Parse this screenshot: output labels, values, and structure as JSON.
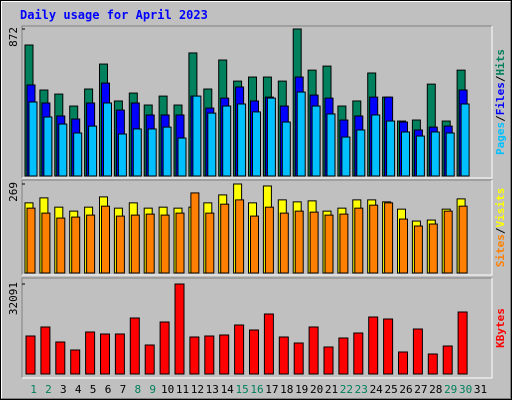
{
  "chart_data": [
    {
      "type": "bar",
      "title": "Daily usage for April 2023",
      "ylim": [
        0,
        872
      ],
      "yticks": [
        872
      ],
      "legend_separator": "/",
      "series": [
        {
          "name": "Hits",
          "color": "#00805c",
          "values": [
            777,
            510,
            486,
            415,
            516,
            664,
            445,
            492,
            421,
            474,
            421,
            730,
            516,
            688,
            563,
            587,
            587,
            563,
            872,
            628,
            652,
            415,
            445,
            611,
            468,
            326,
            332,
            545,
            326,
            628,
            null
          ]
        },
        {
          "name": "Files",
          "color": "#0000ff",
          "values": [
            540,
            433,
            356,
            338,
            433,
            551,
            391,
            433,
            362,
            362,
            362,
            474,
            403,
            462,
            528,
            445,
            468,
            415,
            587,
            480,
            462,
            332,
            356,
            468,
            468,
            320,
            273,
            290,
            296,
            510,
            null
          ]
        },
        {
          "name": "Pages",
          "color": "#00c0ff",
          "values": [
            439,
            350,
            308,
            255,
            296,
            433,
            249,
            279,
            279,
            290,
            225,
            474,
            373,
            415,
            427,
            380,
            462,
            320,
            498,
            415,
            368,
            231,
            273,
            362,
            326,
            261,
            237,
            261,
            255,
            427,
            null
          ]
        }
      ]
    },
    {
      "type": "bar",
      "ylim": [
        0,
        269
      ],
      "yticks": [
        269
      ],
      "legend_separator": "/",
      "series": [
        {
          "name": "Visits",
          "color": "#ffff00",
          "values": [
            212,
            227,
            199,
            187,
            199,
            230,
            196,
            212,
            196,
            199,
            196,
            199,
            212,
            236,
            269,
            212,
            263,
            221,
            215,
            218,
            187,
            196,
            221,
            221,
            215,
            193,
            157,
            160,
            193,
            224,
            null
          ]
        },
        {
          "name": "Sites",
          "color": "#ff8000",
          "values": [
            196,
            181,
            166,
            169,
            175,
            202,
            172,
            175,
            178,
            175,
            181,
            242,
            181,
            208,
            221,
            172,
            199,
            181,
            187,
            184,
            175,
            178,
            196,
            205,
            212,
            163,
            142,
            148,
            187,
            202,
            null
          ]
        }
      ]
    },
    {
      "type": "bar",
      "ylim": [
        0,
        32091
      ],
      "yticks": [
        32091
      ],
      "categories": [
        "1",
        "2",
        "3",
        "4",
        "5",
        "6",
        "7",
        "8",
        "9",
        "10",
        "11",
        "12",
        "13",
        "14",
        "15",
        "16",
        "17",
        "18",
        "19",
        "20",
        "21",
        "22",
        "23",
        "24",
        "25",
        "26",
        "27",
        "28",
        "29",
        "30",
        "31"
      ],
      "label_colors": [
        "#00805c",
        "#00805c",
        "#000000",
        "#000000",
        "#000000",
        "#000000",
        "#000000",
        "#00805c",
        "#00805c",
        "#000000",
        "#000000",
        "#000000",
        "#000000",
        "#000000",
        "#00805c",
        "#00805c",
        "#000000",
        "#000000",
        "#000000",
        "#000000",
        "#000000",
        "#00805c",
        "#00805c",
        "#000000",
        "#000000",
        "#000000",
        "#000000",
        "#000000",
        "#00805c",
        "#00805c",
        "#000000"
      ],
      "series": [
        {
          "name": "KBytes",
          "color": "#ff0000",
          "values": [
            13551,
            16761,
            11411,
            8558,
            14977,
            14263,
            14263,
            19969,
            10341,
            18543,
            32091,
            13194,
            13551,
            13907,
            17473,
            15690,
            21395,
            13194,
            11054,
            16761,
            9628,
            12837,
            14620,
            20325,
            19612,
            7845,
            16046,
            7131,
            9984,
            22108,
            null
          ]
        }
      ]
    }
  ]
}
